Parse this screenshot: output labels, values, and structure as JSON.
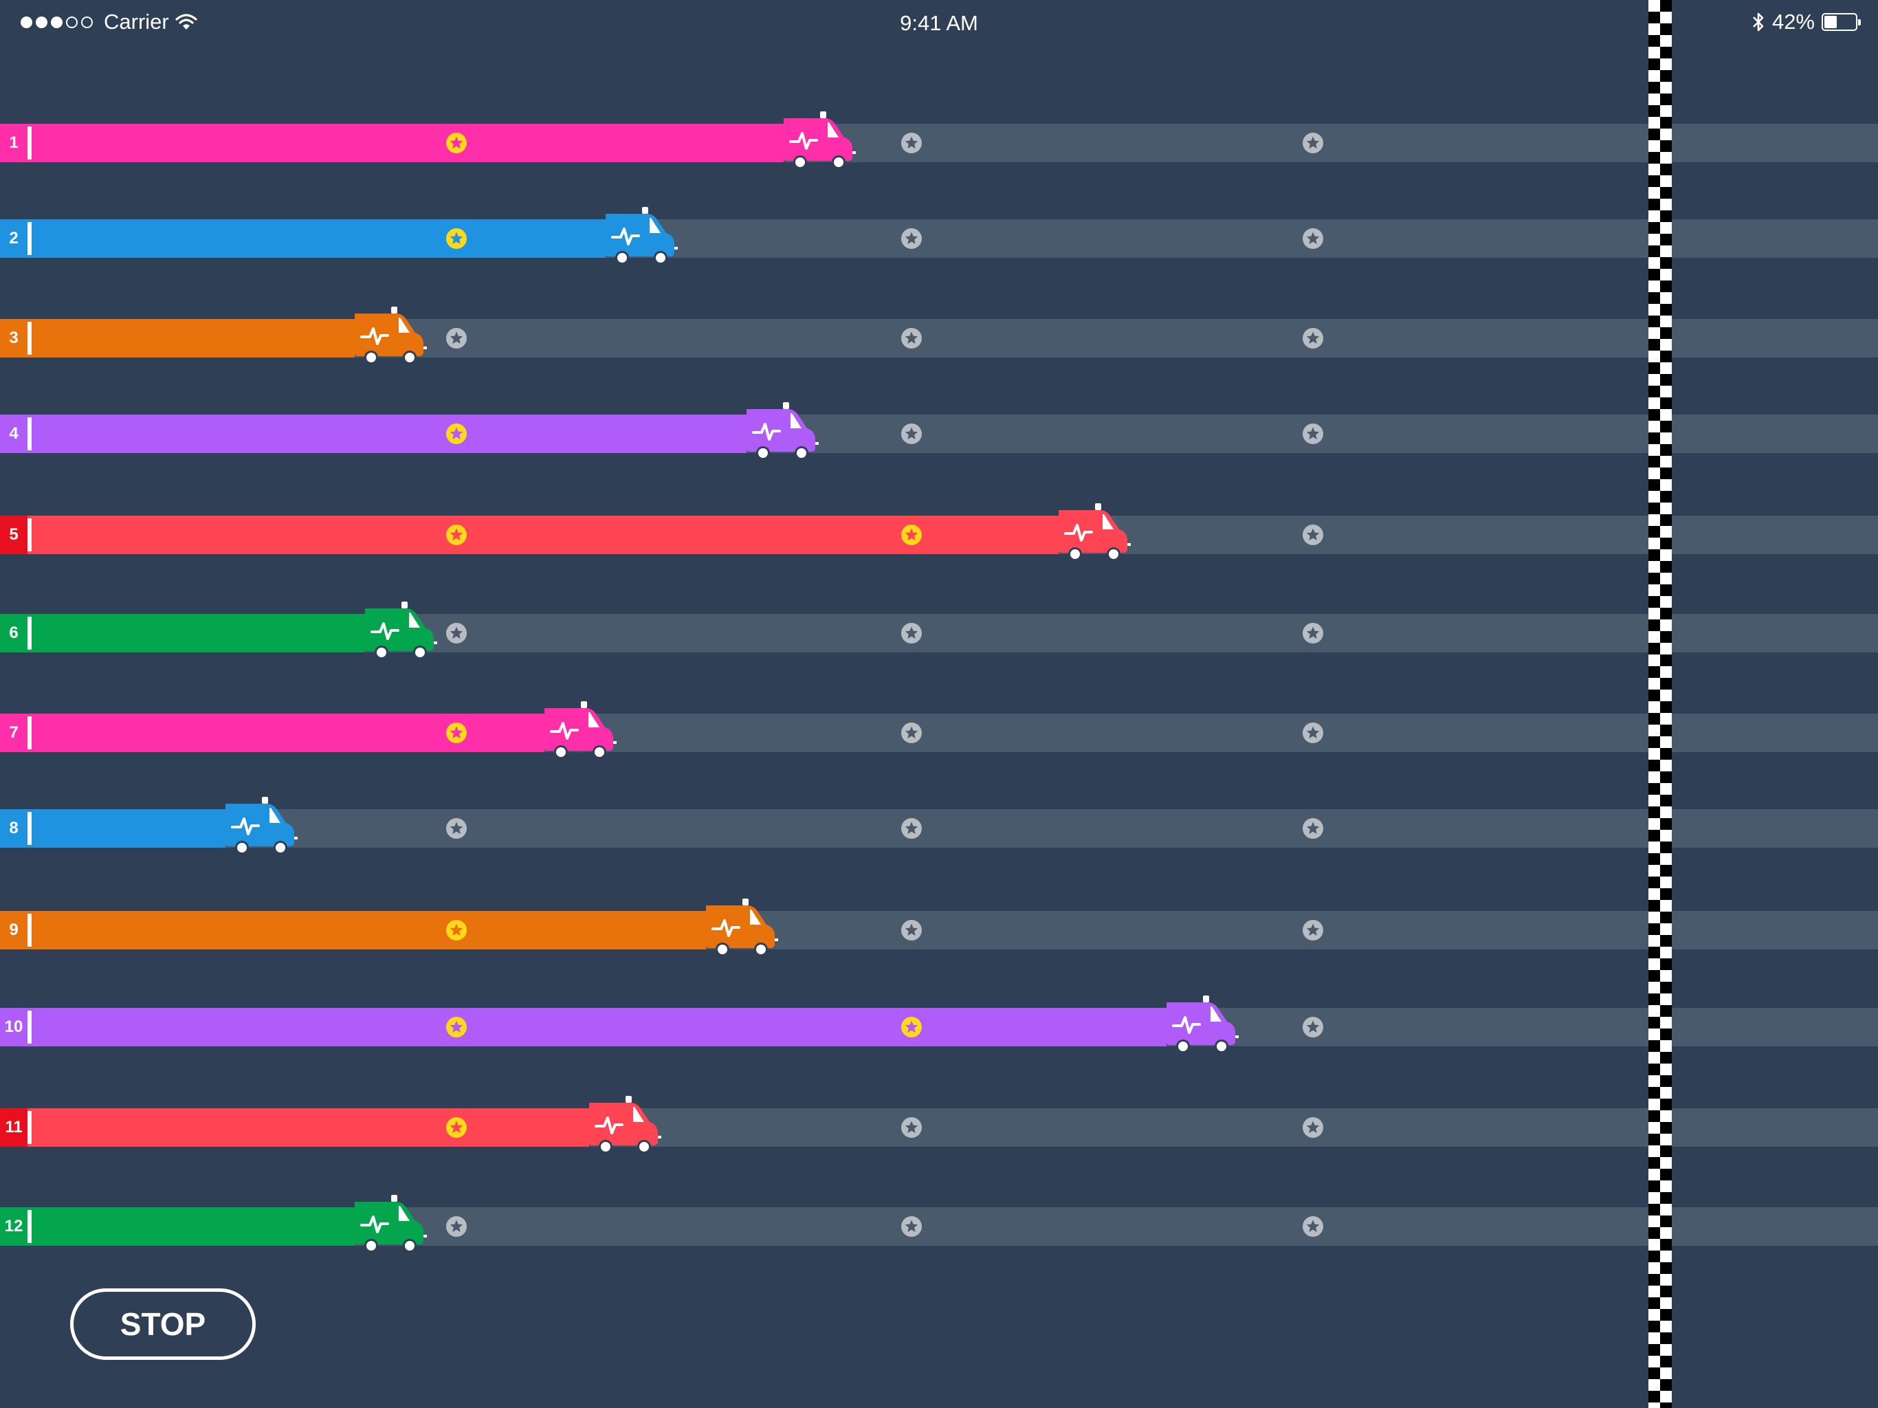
{
  "status_bar": {
    "signal_bars_filled": 3,
    "signal_bars_total": 5,
    "carrier": "Carrier",
    "wifi_icon": "wifi-icon",
    "time": "9:41 AM",
    "bluetooth_icon": "bluetooth-icon",
    "battery_percent": "42%",
    "battery_level": 0.42
  },
  "race": {
    "checkpoint_count": 3,
    "finish_icon": "checkered-flag-line",
    "lanes": [
      {
        "number": "1",
        "color": "#ff2fa9",
        "progress": 0.465,
        "stars_collected": 1
      },
      {
        "number": "2",
        "color": "#1f93e0",
        "progress": 0.355,
        "stars_collected": 1
      },
      {
        "number": "3",
        "color": "#e8720c",
        "progress": 0.2,
        "stars_collected": 0
      },
      {
        "number": "4",
        "color": "#b05cf8",
        "progress": 0.442,
        "stars_collected": 1
      },
      {
        "number": "5",
        "color": "#ff4454",
        "progress": 0.635,
        "stars_collected": 2
      },
      {
        "number": "6",
        "color": "#03a54d",
        "progress": 0.206,
        "stars_collected": 0
      },
      {
        "number": "7",
        "color": "#ff2fa9",
        "progress": 0.317,
        "stars_collected": 1
      },
      {
        "number": "8",
        "color": "#1f93e0",
        "progress": 0.12,
        "stars_collected": 0
      },
      {
        "number": "9",
        "color": "#e8720c",
        "progress": 0.417,
        "stars_collected": 1
      },
      {
        "number": "10",
        "color": "#b05cf8",
        "progress": 0.702,
        "stars_collected": 2
      },
      {
        "number": "11",
        "color": "#ff4454",
        "progress": 0.345,
        "stars_collected": 1
      },
      {
        "number": "12",
        "color": "#03a54d",
        "progress": 0.2,
        "stars_collected": 0
      }
    ],
    "lane_number_colors": {
      "5": "#e8101e",
      "11": "#e8101e"
    },
    "star_collected_color": "#ffd81c",
    "star_empty_color": "#b8bcc3",
    "lane_track_color": "#4a5a6d",
    "background_color": "#2f3f55",
    "vehicle_icon": "ambulance-icon",
    "checkpoint_icon": "star-icon"
  },
  "controls": {
    "stop_label": "STOP"
  }
}
